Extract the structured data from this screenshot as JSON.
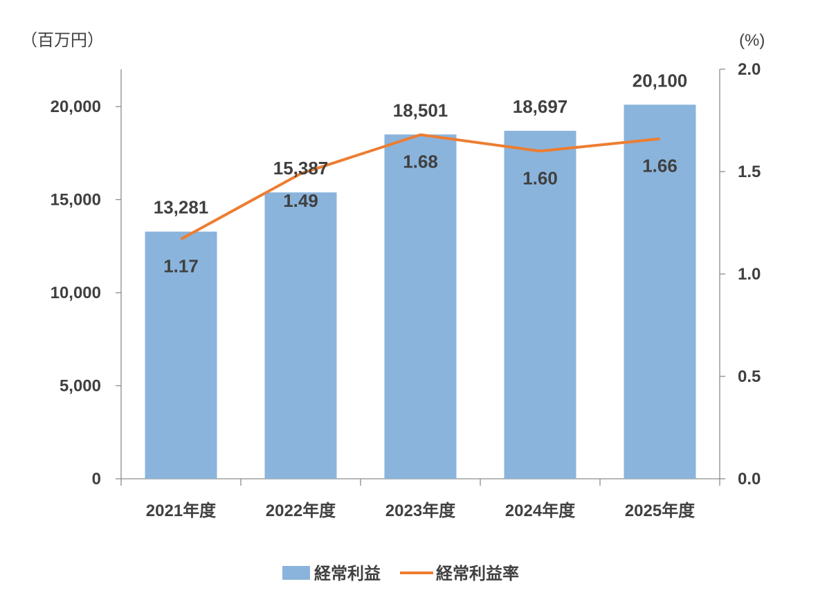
{
  "chart_data": {
    "type": "bar",
    "categories": [
      "2021年度",
      "2022年度",
      "2023年度",
      "2024年度",
      "2025年度"
    ],
    "series": [
      {
        "name": "経常利益",
        "type": "bar",
        "axis": "left",
        "values": [
          13281,
          15387,
          18501,
          18697,
          20100
        ],
        "labels": [
          "13,281",
          "15,387",
          "18,501",
          "18,697",
          "20,100"
        ],
        "color": "#8ab4dc"
      },
      {
        "name": "経常利益率",
        "type": "line",
        "axis": "right",
        "values": [
          1.17,
          1.49,
          1.68,
          1.6,
          1.66
        ],
        "labels": [
          "1.17",
          "1.49",
          "1.68",
          "1.60",
          "1.66"
        ],
        "color": "#ed7d31"
      }
    ],
    "y_left": {
      "unit": "（百万円）",
      "range": [
        0,
        22000
      ],
      "ticks": [
        0,
        5000,
        10000,
        15000,
        20000
      ],
      "tick_labels": [
        "0",
        "5,000",
        "10,000",
        "15,000",
        "20,000"
      ]
    },
    "y_right": {
      "unit": "(%)",
      "range": [
        0,
        2.0
      ],
      "ticks": [
        0,
        0.5,
        1.0,
        1.5,
        2.0
      ],
      "tick_labels": [
        "0.0",
        "0.5",
        "1.0",
        "1.5",
        "2.0"
      ]
    },
    "grid": false,
    "legend": "bottom-center"
  }
}
